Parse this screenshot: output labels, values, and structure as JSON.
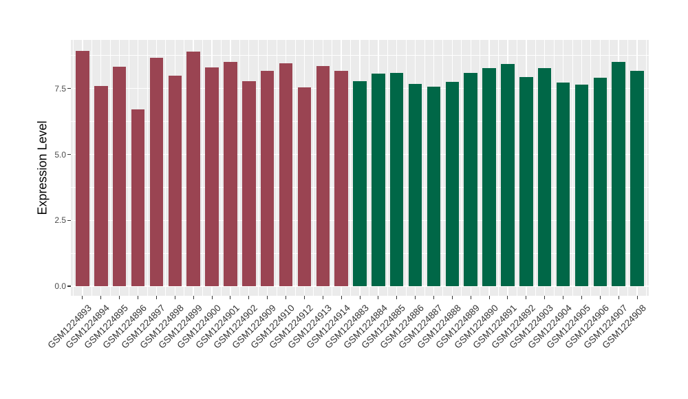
{
  "chart_data": {
    "type": "bar",
    "title": "",
    "xlabel": "",
    "ylabel": "Expression Level",
    "ylim": [
      0,
      9.35
    ],
    "yticks": [
      0.0,
      2.5,
      5.0,
      7.5
    ],
    "ytick_labels": [
      "0.0",
      "2.5",
      "5.0",
      "7.5"
    ],
    "grid": "on",
    "legend": "none",
    "categories": [
      "GSM1224893",
      "GSM1224894",
      "GSM1224895",
      "GSM1224896",
      "GSM1224897",
      "GSM1224898",
      "GSM1224899",
      "GSM1224900",
      "GSM1224901",
      "GSM1224902",
      "GSM1224909",
      "GSM1224910",
      "GSM1224912",
      "GSM1224913",
      "GSM1224914",
      "GSM1224883",
      "GSM1224884",
      "GSM1224885",
      "GSM1224886",
      "GSM1224887",
      "GSM1224888",
      "GSM1224889",
      "GSM1224890",
      "GSM1224891",
      "GSM1224892",
      "GSM1224903",
      "GSM1224904",
      "GSM1224905",
      "GSM1224906",
      "GSM1224907",
      "GSM1224908"
    ],
    "values": [
      8.93,
      7.59,
      8.34,
      6.7,
      8.68,
      7.99,
      8.9,
      8.3,
      8.51,
      7.78,
      8.16,
      8.45,
      7.55,
      8.36,
      8.18,
      7.77,
      8.08,
      8.1,
      7.67,
      7.58,
      7.75,
      8.1,
      8.28,
      8.43,
      7.94,
      8.28,
      7.73,
      7.66,
      7.92,
      8.5,
      8.16
    ],
    "bar_group": [
      0,
      0,
      0,
      0,
      0,
      0,
      0,
      0,
      0,
      0,
      0,
      0,
      0,
      0,
      0,
      1,
      1,
      1,
      1,
      1,
      1,
      1,
      1,
      1,
      1,
      1,
      1,
      1,
      1,
      1,
      1
    ],
    "group_colors": [
      "#9A4452",
      "#006747"
    ],
    "panel_background": "#EBEBEB",
    "gridline_color": "#FFFFFF",
    "ytick_text_color": "#4D4D4D",
    "xtick_text_color": "#333333",
    "axis_title_color": "#000000"
  }
}
